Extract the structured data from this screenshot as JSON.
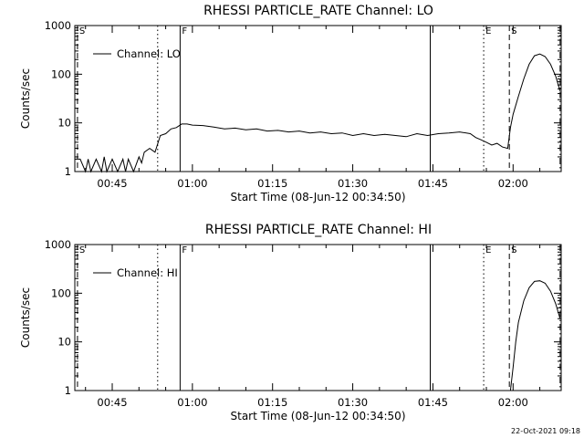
{
  "footer": {
    "timestamp": "22-Oct-2021 09:18"
  },
  "chart_data": [
    {
      "type": "line",
      "title": "RHESSI PARTICLE_RATE Channel: LO",
      "xlabel": "Start Time (08-Jun-12 00:34:50)",
      "ylabel": "Counts/sec",
      "y_scale": "log",
      "ylim": [
        1,
        1000
      ],
      "xlim_min": [
        38.0,
        129.0
      ],
      "x_ticks": [
        {
          "value": 45,
          "label": "00:45"
        },
        {
          "value": 60,
          "label": "01:00"
        },
        {
          "value": 75,
          "label": "01:15"
        },
        {
          "value": 90,
          "label": "01:30"
        },
        {
          "value": 105,
          "label": "01:45"
        },
        {
          "value": 120,
          "label": "02:00"
        }
      ],
      "y_ticks": [
        {
          "value": 1,
          "label": "1"
        },
        {
          "value": 10,
          "label": "10"
        },
        {
          "value": 100,
          "label": "100"
        },
        {
          "value": 1000,
          "label": "1000"
        }
      ],
      "legend": {
        "label": "Channel: LO",
        "position": "top-left"
      },
      "markers": [
        {
          "x": 38.5,
          "style": "dashed",
          "label": "S"
        },
        {
          "x": 53.5,
          "style": "dotted",
          "label": ""
        },
        {
          "x": 57.7,
          "style": "solid",
          "label": "F"
        },
        {
          "x": 104.5,
          "style": "solid",
          "label": ""
        },
        {
          "x": 114.5,
          "style": "dotted",
          "label": "E"
        },
        {
          "x": 119.3,
          "style": "dashed",
          "label": "S"
        },
        {
          "x": 128.8,
          "style": "dashdot",
          "label": ""
        }
      ],
      "series": [
        {
          "x": [
            38,
            39,
            40,
            40.5,
            41,
            42,
            43,
            43.5,
            44,
            45,
            46,
            47,
            47.5,
            48,
            49,
            50,
            50.5,
            51,
            52,
            53,
            54,
            55,
            56,
            57,
            58,
            59,
            60,
            62,
            64,
            66,
            68,
            70,
            72,
            74,
            76,
            78,
            80,
            82,
            84,
            86,
            88,
            90,
            92,
            94,
            96,
            98,
            100,
            102,
            104,
            106,
            108,
            110,
            112,
            113,
            114,
            115,
            116,
            117,
            118,
            119,
            119.5,
            120,
            121,
            122,
            123,
            124,
            125,
            126,
            127,
            128,
            128.8
          ],
          "y": [
            1.8,
            1.8,
            1.0,
            1.8,
            1.0,
            1.8,
            1.0,
            2.0,
            1.0,
            1.8,
            1.0,
            1.8,
            1.0,
            1.8,
            1.0,
            2.0,
            1.5,
            2.5,
            3.0,
            2.5,
            5.5,
            6.0,
            7.5,
            8.0,
            9.5,
            9.5,
            9.0,
            8.8,
            8.2,
            7.5,
            7.8,
            7.2,
            7.5,
            6.8,
            7.0,
            6.5,
            6.8,
            6.2,
            6.5,
            6.0,
            6.2,
            5.5,
            6.0,
            5.5,
            5.8,
            5.5,
            5.2,
            6.0,
            5.5,
            6.0,
            6.2,
            6.5,
            6.0,
            5.0,
            4.5,
            4.0,
            3.5,
            3.8,
            3.2,
            3.0,
            8.0,
            15,
            35,
            80,
            160,
            240,
            260,
            230,
            160,
            90,
            45
          ]
        }
      ]
    },
    {
      "type": "line",
      "title": "RHESSI PARTICLE_RATE Channel: HI",
      "xlabel": "Start Time (08-Jun-12 00:34:50)",
      "ylabel": "Counts/sec",
      "y_scale": "log",
      "ylim": [
        1,
        1000
      ],
      "xlim_min": [
        38.0,
        129.0
      ],
      "x_ticks": [
        {
          "value": 45,
          "label": "00:45"
        },
        {
          "value": 60,
          "label": "01:00"
        },
        {
          "value": 75,
          "label": "01:15"
        },
        {
          "value": 90,
          "label": "01:30"
        },
        {
          "value": 105,
          "label": "01:45"
        },
        {
          "value": 120,
          "label": "02:00"
        }
      ],
      "y_ticks": [
        {
          "value": 1,
          "label": "1"
        },
        {
          "value": 10,
          "label": "10"
        },
        {
          "value": 100,
          "label": "100"
        },
        {
          "value": 1000,
          "label": "1000"
        }
      ],
      "legend": {
        "label": "Channel: HI",
        "position": "top-left"
      },
      "markers": [
        {
          "x": 38.5,
          "style": "dashed",
          "label": "S"
        },
        {
          "x": 53.5,
          "style": "dotted",
          "label": ""
        },
        {
          "x": 57.7,
          "style": "solid",
          "label": "F"
        },
        {
          "x": 104.5,
          "style": "solid",
          "label": ""
        },
        {
          "x": 114.5,
          "style": "dotted",
          "label": "E"
        },
        {
          "x": 119.3,
          "style": "dashed",
          "label": "S"
        },
        {
          "x": 128.8,
          "style": "dashdot",
          "label": ""
        }
      ],
      "series": [
        {
          "x": [
            119.5,
            120,
            120.5,
            121,
            122,
            123,
            124,
            125,
            126,
            127,
            128,
            128.8
          ],
          "y": [
            1.0,
            3.0,
            10,
            25,
            70,
            130,
            175,
            180,
            160,
            110,
            60,
            30
          ]
        }
      ]
    }
  ]
}
